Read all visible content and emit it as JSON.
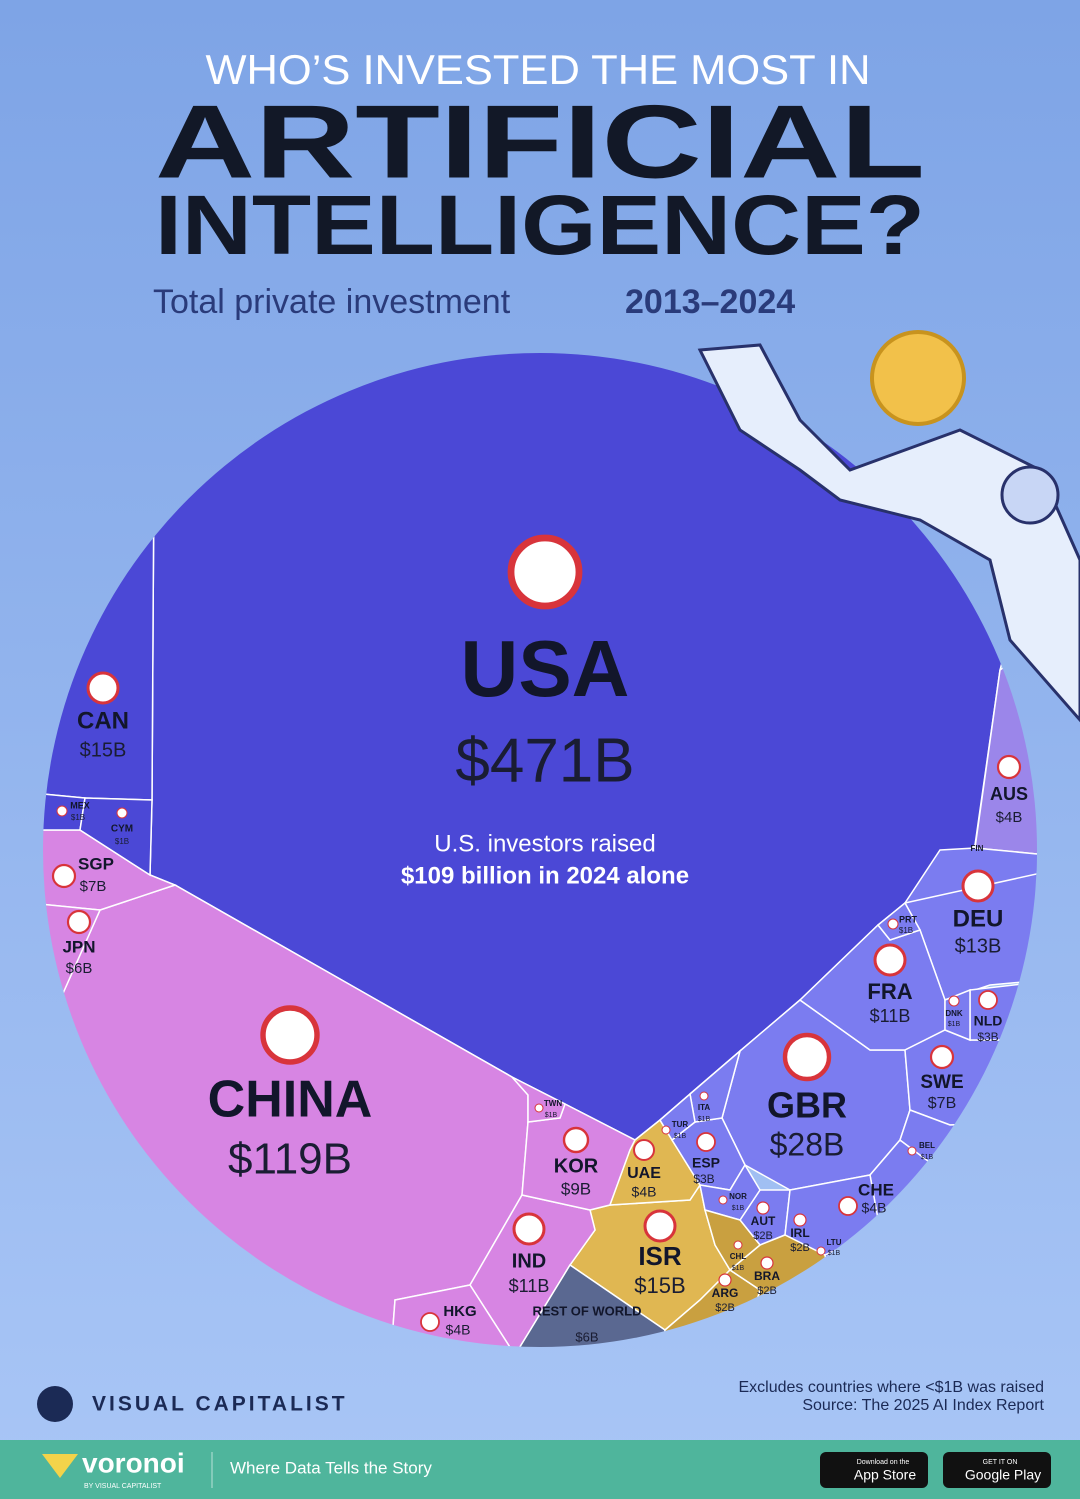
{
  "header": {
    "kicker": "WHO’S INVESTED THE MOST IN",
    "title": [
      "ARTIFICIAL",
      "INTELLIGENCE?"
    ],
    "subtitle": "Total private investment",
    "period": "2013–2024"
  },
  "chart_data": {
    "type": "voronoi",
    "categories": [
      "USA",
      "CHINA",
      "GBR",
      "CAN",
      "ISR",
      "DEU",
      "FRA",
      "IND",
      "KOR",
      "SGP",
      "SWE",
      "JPN",
      "REST OF WORLD",
      "AUS",
      "UAE",
      "HKG",
      "CHE",
      "ESP",
      "NLD",
      "AUT",
      "IRL",
      "ARG",
      "BRA",
      "MEX",
      "CYM",
      "PRT",
      "DNK",
      "ITA",
      "TUR",
      "TWN",
      "NOR",
      "BEL",
      "CHL",
      "LTU",
      "FIN"
    ],
    "values": [
      471,
      119,
      28,
      15,
      15,
      13,
      11,
      11,
      9,
      7,
      7,
      6,
      6,
      4,
      4,
      4,
      4,
      3,
      3,
      2,
      2,
      2,
      2,
      1,
      1,
      1,
      1,
      1,
      1,
      1,
      1,
      1,
      1,
      1,
      null
    ],
    "value_labels": [
      "$471B",
      "$119B",
      "$28B",
      "$15B",
      "$15B",
      "$13B",
      "$11B",
      "$11B",
      "$9B",
      "$7B",
      "$7B",
      "$6B",
      "$6B",
      "$4B",
      "$4B",
      "$4B",
      "$4B",
      "$3B",
      "$3B",
      "$2B",
      "$2B",
      "$2B",
      "$2B",
      "$1B",
      "$1B",
      "$1B",
      "$1B",
      "$1B",
      "$1B",
      "$1B",
      "$1B",
      "$1B",
      "$1B",
      "$1B",
      null
    ],
    "colors": [
      "#4b48d6",
      "#d785e3",
      "#7b7cf0",
      "#4b48d6",
      "#e0b752",
      "#7b7cf0",
      "#7b7cf0",
      "#d785e3",
      "#d785e3",
      "#d785e3",
      "#7b7cf0",
      "#d785e3",
      "#5a6891",
      "#9b86ea",
      "#e0b752",
      "#d785e3",
      "#7b7cf0",
      "#7b7cf0",
      "#7b7cf0",
      "#7b7cf0",
      "#7b7cf0",
      "#c9a040",
      "#c9a040",
      "#4b48d6",
      "#4b48d6",
      "#7b7cf0",
      "#7b7cf0",
      "#7b7cf0",
      "#7b7cf0",
      "#d785e3",
      "#7b7cf0",
      "#7b7cf0",
      "#c9a040",
      "#7b7cf0",
      "#7b7cf0"
    ],
    "annotation": [
      "U.S. investors raised",
      "$109 billion in 2024 alone"
    ]
  },
  "notes": [
    "Excludes countries where <$1B was raised",
    "Source: The 2025 AI Index Report"
  ],
  "footer": {
    "brand": "VISUAL CAPITALIST",
    "app": "voronoi",
    "app_by": "BY VISUAL CAPITALIST",
    "tagline": "Where Data Tells the Story",
    "apple_small": "Download on the",
    "apple": "App Store",
    "google_small": "GET IT ON",
    "google": "Google Play"
  }
}
